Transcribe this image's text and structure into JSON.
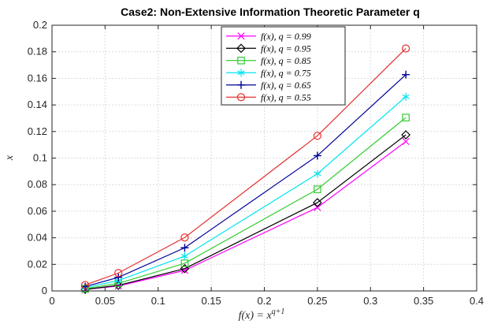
{
  "chart_data": {
    "type": "line",
    "title": "Case2: Non-Extensive Information Theoretic Parameter q",
    "xlabel": "f(x) = x^{q+1}",
    "ylabel": "x",
    "xlim": [
      0,
      0.4
    ],
    "ylim": [
      0,
      0.2
    ],
    "xticks": [
      0,
      0.05,
      0.1,
      0.15,
      0.2,
      0.25,
      0.3,
      0.35,
      0.4
    ],
    "yticks": [
      0,
      0.02,
      0.04,
      0.06,
      0.08,
      0.1,
      0.12,
      0.14,
      0.16,
      0.18,
      0.2
    ],
    "xtick_labels": [
      "0",
      "0.05",
      "0.1",
      "0.15",
      "0.2",
      "0.25",
      "0.3",
      "0.35",
      "0.4"
    ],
    "ytick_labels": [
      "0",
      "0.02",
      "0.04",
      "0.06",
      "0.08",
      "0.1",
      "0.12",
      "0.14",
      "0.16",
      "0.18",
      "0.2"
    ],
    "grid": true,
    "legend_position": "top-center",
    "x": [
      0.03125,
      0.0625,
      0.125,
      0.25,
      0.3333
    ],
    "series": [
      {
        "name": "f(x), q = 0.99",
        "color": "#ff00ff",
        "marker": "x",
        "values": [
          0.0011,
          0.0037,
          0.0155,
          0.0628,
          0.1125
        ]
      },
      {
        "name": "f(x), q = 0.95",
        "color": "#000000",
        "marker": "diamond",
        "values": [
          0.0012,
          0.0042,
          0.0168,
          0.0665,
          0.1175
        ]
      },
      {
        "name": "f(x), q = 0.85",
        "color": "#33cc33",
        "marker": "square",
        "values": [
          0.0017,
          0.0057,
          0.0208,
          0.0765,
          0.1305
        ]
      },
      {
        "name": "f(x), q = 0.75",
        "color": "#00e5ee",
        "marker": "asterisk",
        "values": [
          0.0025,
          0.0078,
          0.0262,
          0.0882,
          0.1462
        ]
      },
      {
        "name": "f(x), q = 0.65",
        "color": "#000099",
        "marker": "plus",
        "values": [
          0.0033,
          0.0102,
          0.0325,
          0.1018,
          0.1628
        ]
      },
      {
        "name": "f(x), q = 0.55",
        "color": "#e53030",
        "marker": "circle",
        "values": [
          0.0045,
          0.0135,
          0.0402,
          0.1168,
          0.1825
        ]
      }
    ]
  }
}
